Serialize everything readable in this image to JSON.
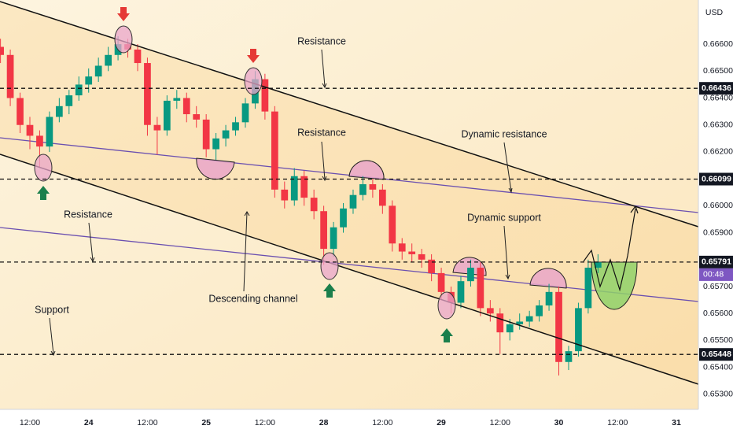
{
  "chart_data": {
    "type": "candlestick",
    "currency": "USD",
    "countdown": "00:48",
    "xlim": [
      -6.1,
      136.5
    ],
    "ylim": [
      0.65244,
      0.66764
    ],
    "grid": false,
    "up_color": "#089981",
    "down_color": "#f23645",
    "xticks": [
      {
        "value": 0,
        "label": "12:00"
      },
      {
        "value": 12,
        "label": "24"
      },
      {
        "value": 24,
        "label": "12:00"
      },
      {
        "value": 36,
        "label": "25"
      },
      {
        "value": 48,
        "label": "12:00"
      },
      {
        "value": 60,
        "label": "28"
      },
      {
        "value": 72,
        "label": "12:00"
      },
      {
        "value": 84,
        "label": "29"
      },
      {
        "value": 96,
        "label": "12:00"
      },
      {
        "value": 108,
        "label": "30"
      },
      {
        "value": 120,
        "label": "12:00"
      },
      {
        "value": 132,
        "label": "31"
      }
    ],
    "yticks": [
      {
        "value": 0.653,
        "label": "0.65300"
      },
      {
        "value": 0.654,
        "label": "0.65400"
      },
      {
        "value": 0.655,
        "label": "0.65500"
      },
      {
        "value": 0.656,
        "label": "0.65600"
      },
      {
        "value": 0.657,
        "label": "0.65700"
      },
      {
        "value": 0.658,
        "label": "0.65800"
      },
      {
        "value": 0.659,
        "label": "0.65900"
      },
      {
        "value": 0.66,
        "label": "0.66000"
      },
      {
        "value": 0.661,
        "label": "0.66100"
      },
      {
        "value": 0.662,
        "label": "0.66200"
      },
      {
        "value": 0.663,
        "label": "0.66300"
      },
      {
        "value": 0.664,
        "label": "0.66400"
      },
      {
        "value": 0.665,
        "label": "0.66500"
      },
      {
        "value": 0.666,
        "label": "0.66600"
      }
    ],
    "levels": [
      {
        "value": 0.66436,
        "label": "0.66436"
      },
      {
        "value": 0.66099,
        "label": "0.66099"
      },
      {
        "value": 0.65791,
        "label": "0.65791"
      },
      {
        "value": 0.65448,
        "label": "0.65448"
      }
    ],
    "annotations": [
      "Resistance",
      "Resistance",
      "Resistance",
      "Dynamic resistance",
      "Dynamic support",
      "Descending channel",
      "Support"
    ],
    "x": [
      -6,
      -4,
      -2,
      0,
      2,
      4,
      6,
      8,
      10,
      12,
      14,
      16,
      18,
      20,
      22,
      24,
      26,
      28,
      30,
      32,
      34,
      36,
      38,
      40,
      42,
      44,
      46,
      48,
      50,
      52,
      54,
      56,
      58,
      60,
      62,
      64,
      66,
      68,
      70,
      72,
      74,
      76,
      78,
      80,
      82,
      84,
      86,
      88,
      90,
      92,
      94,
      96,
      98,
      100,
      102,
      104,
      106,
      108,
      110,
      112,
      114,
      116
    ],
    "open": [
      0.6659,
      0.6656,
      0.664,
      0.663,
      0.6626,
      0.6622,
      0.6633,
      0.6637,
      0.6641,
      0.6645,
      0.6648,
      0.6652,
      0.6656,
      0.666,
      0.6658,
      0.6653,
      0.663,
      0.6628,
      0.6639,
      0.664,
      0.6634,
      0.6632,
      0.6621,
      0.6625,
      0.6628,
      0.6631,
      0.6638,
      0.6647,
      0.6635,
      0.6606,
      0.6602,
      0.6611,
      0.6603,
      0.6598,
      0.6584,
      0.6592,
      0.6599,
      0.6604,
      0.6608,
      0.6606,
      0.66,
      0.6586,
      0.6583,
      0.6582,
      0.658,
      0.6575,
      0.6568,
      0.6564,
      0.6572,
      0.6577,
      0.6562,
      0.656,
      0.6553,
      0.6556,
      0.6557,
      0.6559,
      0.6563,
      0.6568,
      0.6542,
      0.6546,
      0.6562,
      0.6577
    ],
    "high": [
      0.6662,
      0.6658,
      0.6642,
      0.6633,
      0.6628,
      0.6635,
      0.664,
      0.6643,
      0.6648,
      0.6651,
      0.6655,
      0.6659,
      0.6663,
      0.6662,
      0.666,
      0.6655,
      0.6633,
      0.6641,
      0.6643,
      0.6642,
      0.6637,
      0.6634,
      0.6627,
      0.663,
      0.6633,
      0.664,
      0.665,
      0.6649,
      0.6637,
      0.6609,
      0.6614,
      0.6613,
      0.6606,
      0.66,
      0.6594,
      0.6601,
      0.6606,
      0.6611,
      0.661,
      0.6608,
      0.6602,
      0.6588,
      0.6586,
      0.6584,
      0.6582,
      0.6577,
      0.657,
      0.6574,
      0.658,
      0.6579,
      0.6565,
      0.6562,
      0.6558,
      0.656,
      0.6561,
      0.6565,
      0.6571,
      0.657,
      0.6548,
      0.6564,
      0.658,
      0.6582
    ],
    "low": [
      0.6653,
      0.6637,
      0.6627,
      0.6621,
      0.6614,
      0.662,
      0.6631,
      0.6634,
      0.6639,
      0.6642,
      0.6646,
      0.665,
      0.6654,
      0.6655,
      0.665,
      0.6626,
      0.6619,
      0.6626,
      0.6636,
      0.6631,
      0.6629,
      0.6618,
      0.6617,
      0.6622,
      0.6626,
      0.6629,
      0.6636,
      0.6632,
      0.6603,
      0.6599,
      0.66,
      0.66,
      0.6595,
      0.6578,
      0.6581,
      0.659,
      0.6597,
      0.6602,
      0.6603,
      0.6597,
      0.6583,
      0.658,
      0.6579,
      0.6577,
      0.6572,
      0.6565,
      0.656,
      0.6562,
      0.657,
      0.6559,
      0.6557,
      0.6545,
      0.655,
      0.6554,
      0.6555,
      0.6557,
      0.6561,
      0.6537,
      0.6539,
      0.6544,
      0.656,
      0.6575
    ],
    "close": [
      0.6656,
      0.664,
      0.663,
      0.6626,
      0.6622,
      0.6633,
      0.6637,
      0.6641,
      0.6645,
      0.6648,
      0.6652,
      0.6656,
      0.666,
      0.6658,
      0.6653,
      0.663,
      0.6628,
      0.6639,
      0.664,
      0.6634,
      0.6632,
      0.6621,
      0.6625,
      0.6628,
      0.6631,
      0.6638,
      0.6647,
      0.6635,
      0.6606,
      0.6602,
      0.6611,
      0.6603,
      0.6598,
      0.6584,
      0.6592,
      0.6599,
      0.6604,
      0.6608,
      0.6606,
      0.66,
      0.6586,
      0.6583,
      0.6582,
      0.658,
      0.6575,
      0.6568,
      0.6564,
      0.6572,
      0.6577,
      0.6562,
      0.656,
      0.6553,
      0.6556,
      0.6557,
      0.6559,
      0.6563,
      0.6568,
      0.6542,
      0.6546,
      0.6562,
      0.6577,
      0.6579
    ]
  }
}
